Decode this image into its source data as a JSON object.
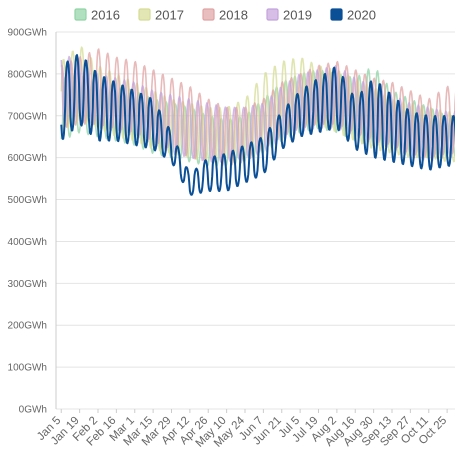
{
  "chart_data": {
    "type": "line",
    "title": "",
    "xlabel": "",
    "ylabel": "",
    "y_unit": "GWh",
    "ylim": [
      0,
      900
    ],
    "yticks": [
      "0GWh",
      "100GWh",
      "200GWh",
      "300GWh",
      "400GWh",
      "500GWh",
      "600GWh",
      "700GWh",
      "800GWh",
      "900GWh"
    ],
    "xticks": [
      "Jan 5",
      "Jan 19",
      "Feb 2",
      "Feb 16",
      "Mar 1",
      "Mar 15",
      "Mar 29",
      "Apr 12",
      "Apr 26",
      "May 10",
      "May 24",
      "Jun 7",
      "Jun 21",
      "Jul 5",
      "Jul 19",
      "Aug 2",
      "Aug 16",
      "Aug 30",
      "Sep 13",
      "Sep 27",
      "Oct 11",
      "Oct 25"
    ],
    "x_range": [
      "Jan 1",
      "Oct 31"
    ],
    "grid": "horizontal",
    "legend_position": "top",
    "series": [
      {
        "name": "2016",
        "color": "#8fd3a5",
        "weekly_x": [
          "Jan 5",
          "Jan 19",
          "Feb 2",
          "Feb 16",
          "Mar 1",
          "Mar 15",
          "Mar 29",
          "Apr 12",
          "Apr 26",
          "May 10",
          "May 24",
          "Jun 7",
          "Jun 21",
          "Jul 5",
          "Jul 19",
          "Aug 2",
          "Aug 16",
          "Aug 30",
          "Sep 13",
          "Sep 27",
          "Oct 11",
          "Oct 25"
        ],
        "weekly_high": [
          790,
          800,
          780,
          770,
          760,
          740,
          730,
          720,
          700,
          690,
          700,
          740,
          780,
          800,
          810,
          800,
          790,
          820,
          760,
          740,
          720,
          700
        ],
        "weekly_low": [
          640,
          660,
          650,
          640,
          630,
          610,
          600,
          590,
          580,
          580,
          590,
          610,
          640,
          660,
          670,
          660,
          640,
          630,
          620,
          610,
          600,
          600
        ]
      },
      {
        "name": "2017",
        "color": "#d6dc96",
        "weekly_x": [
          "Jan 5",
          "Jan 19",
          "Feb 2",
          "Feb 16",
          "Mar 1",
          "Mar 15",
          "Mar 29",
          "Apr 12",
          "Apr 26",
          "May 10",
          "May 24",
          "Jun 7",
          "Jun 21",
          "Jul 5",
          "Jul 19",
          "Aug 2",
          "Aug 16",
          "Aug 30",
          "Sep 13",
          "Sep 27",
          "Oct 11",
          "Oct 25"
        ],
        "weekly_high": [
          830,
          870,
          820,
          800,
          780,
          760,
          740,
          730,
          720,
          720,
          740,
          800,
          830,
          840,
          820,
          810,
          790,
          770,
          740,
          730,
          720,
          710
        ],
        "weekly_low": [
          660,
          690,
          670,
          650,
          640,
          620,
          610,
          600,
          590,
          590,
          600,
          630,
          660,
          680,
          680,
          660,
          640,
          620,
          610,
          600,
          600,
          590
        ]
      },
      {
        "name": "2018",
        "color": "#e0a3a3",
        "weekly_x": [
          "Jan 5",
          "Jan 19",
          "Feb 2",
          "Feb 16",
          "Mar 1",
          "Mar 15",
          "Mar 29",
          "Apr 12",
          "Apr 26",
          "May 10",
          "May 24",
          "Jun 7",
          "Jun 21",
          "Jul 5",
          "Jul 19",
          "Aug 2",
          "Aug 16",
          "Aug 30",
          "Sep 13",
          "Sep 27",
          "Oct 11",
          "Oct 25"
        ],
        "weekly_high": [
          820,
          840,
          860,
          840,
          830,
          810,
          790,
          770,
          740,
          720,
          720,
          740,
          780,
          800,
          820,
          830,
          810,
          790,
          780,
          760,
          740,
          770
        ],
        "weekly_low": [
          670,
          680,
          680,
          670,
          660,
          640,
          620,
          600,
          590,
          580,
          590,
          620,
          650,
          670,
          680,
          680,
          660,
          640,
          630,
          610,
          600,
          610
        ]
      },
      {
        "name": "2019",
        "color": "#c4a3dc",
        "weekly_x": [
          "Jan 5",
          "Jan 19",
          "Feb 2",
          "Feb 16",
          "Mar 1",
          "Mar 15",
          "Mar 29",
          "Apr 12",
          "Apr 26",
          "May 10",
          "May 24",
          "Jun 7",
          "Jun 21",
          "Jul 5",
          "Jul 19",
          "Aug 2",
          "Aug 16",
          "Aug 30",
          "Sep 13",
          "Sep 27",
          "Oct 11",
          "Oct 25"
        ],
        "weekly_high": [
          850,
          830,
          800,
          790,
          780,
          760,
          750,
          740,
          730,
          720,
          720,
          730,
          770,
          800,
          810,
          820,
          790,
          770,
          750,
          730,
          720,
          710
        ],
        "weekly_low": [
          680,
          690,
          670,
          660,
          650,
          630,
          610,
          600,
          590,
          590,
          600,
          610,
          640,
          660,
          670,
          670,
          650,
          630,
          620,
          600,
          590,
          600
        ]
      },
      {
        "name": "2020",
        "color": "#0b4f96",
        "weekly_x": [
          "Jan 5",
          "Jan 19",
          "Feb 2",
          "Feb 16",
          "Mar 1",
          "Mar 15",
          "Mar 29",
          "Apr 12",
          "Apr 26",
          "May 10",
          "May 24",
          "Jun 7",
          "Jun 21",
          "Jul 5",
          "Jul 19",
          "Aug 2",
          "Aug 16",
          "Aug 30",
          "Sep 13",
          "Sep 27",
          "Oct 11",
          "Oct 25"
        ],
        "weekly_high": [
          820,
          850,
          800,
          780,
          760,
          740,
          660,
          560,
          600,
          610,
          630,
          650,
          710,
          760,
          790,
          820,
          740,
          790,
          750,
          710,
          700,
          700
        ],
        "weekly_low": [
          640,
          680,
          640,
          640,
          630,
          620,
          590,
          510,
          520,
          520,
          540,
          560,
          620,
          650,
          660,
          670,
          620,
          600,
          590,
          580,
          570,
          580
        ]
      }
    ]
  }
}
